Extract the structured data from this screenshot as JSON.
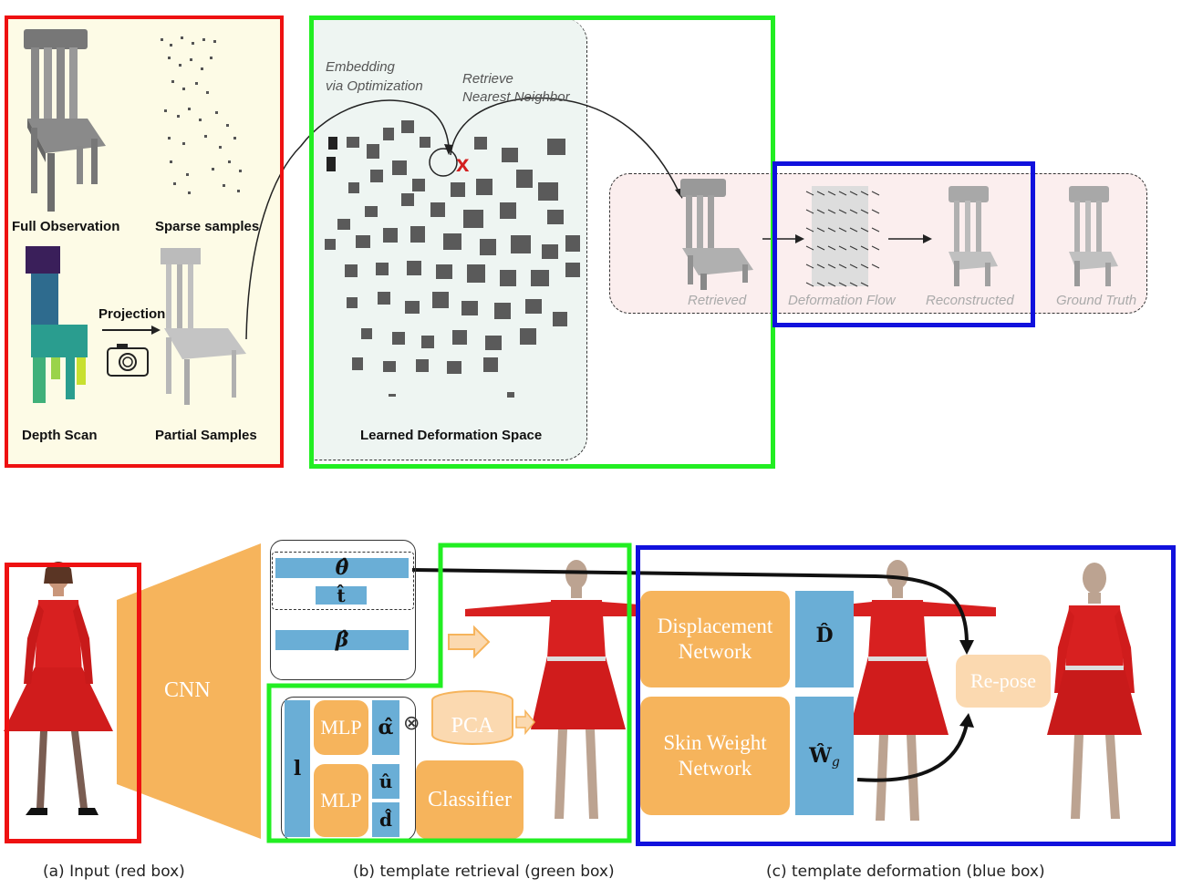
{
  "top": {
    "labels": {
      "full_observation": "Full Observation",
      "sparse_samples": "Sparse samples",
      "projection": "Projection",
      "depth_scan": "Depth Scan",
      "partial_samples": "Partial Samples",
      "learned_space": "Learned Deformation Space",
      "embedding": "Embedding",
      "via_optimization": "via Optimization",
      "retrieve": "Retrieve",
      "nearest_neighbor": "Nearest Neighbor",
      "x_mark": "x",
      "retrieved": "Retrieved",
      "deformation_flow": "Deformation Flow",
      "reconstructed": "Reconstructed",
      "ground_truth": "Ground Truth"
    }
  },
  "bottom": {
    "cnn": "CNN",
    "theta": "θ̂",
    "t": "t̂",
    "beta": "β̂",
    "l": "l",
    "mlp1": "MLP",
    "mlp2": "MLP",
    "alpha": "α̂",
    "u": "û",
    "d": "d̂",
    "otimes": "⊗",
    "pca": "PCA",
    "classifier": "Classifier",
    "displacement_1": "Displacement",
    "displacement_2": "Network",
    "skin_1": "Skin Weight",
    "skin_2": "Network",
    "D": "D̂",
    "W": "Ŵ",
    "W_sub": "g",
    "repose": "Re-pose"
  },
  "captions": {
    "a": "(a) Input (red box)",
    "b": "(b) template retrieval (green box)",
    "c": "(c) template deformation (blue box)"
  },
  "colors": {
    "red": "#ee1111",
    "green": "#22ee22",
    "blue": "#1111dd",
    "orange": "#f6b45c",
    "param_blue": "#6aaed6",
    "dress_red": "#d82020"
  }
}
